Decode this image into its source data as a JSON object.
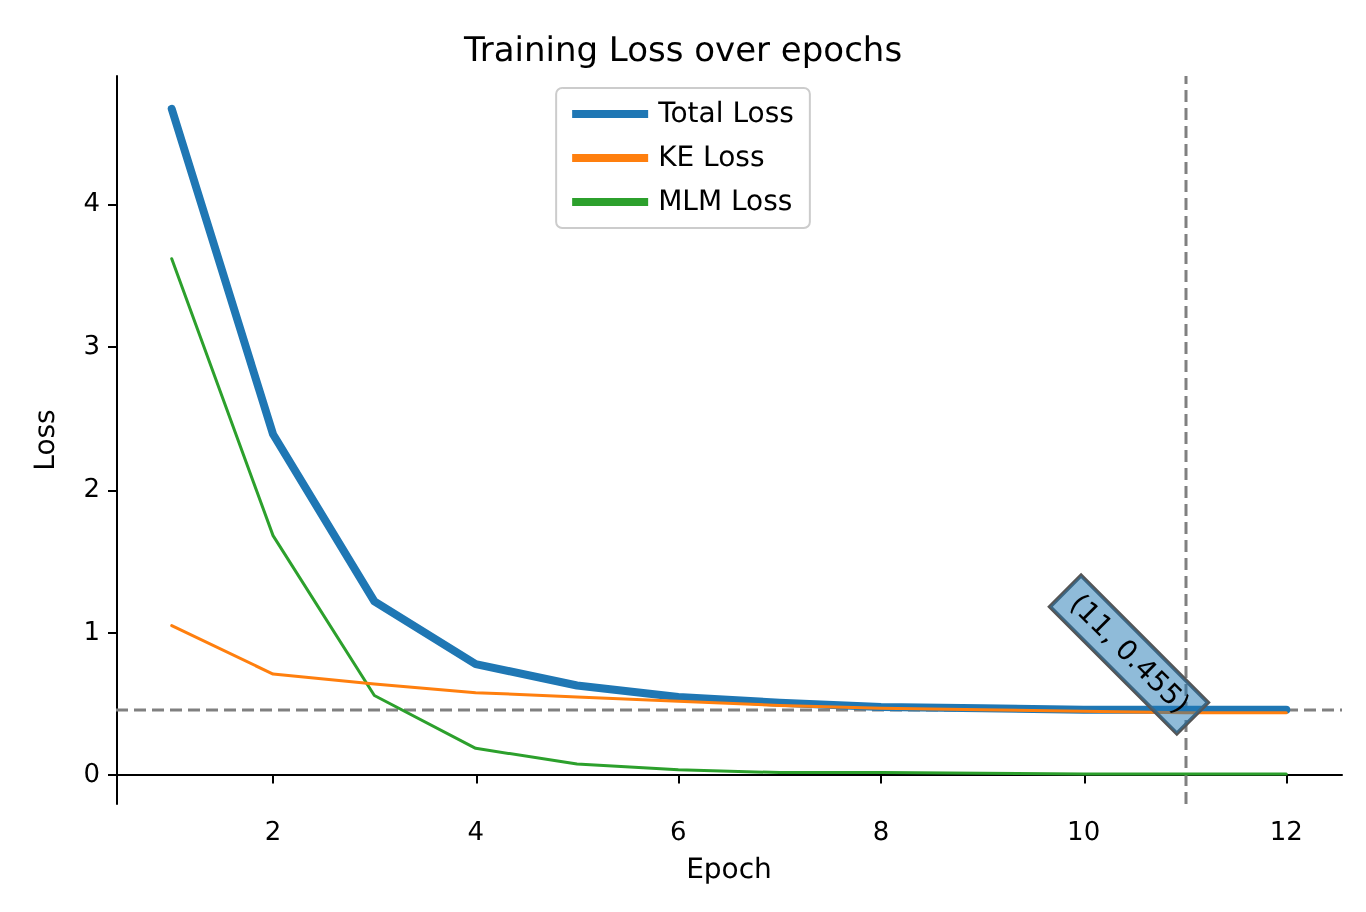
{
  "chart_data": {
    "type": "line",
    "title": "Training Loss over epochs",
    "xlabel": "Epoch",
    "ylabel": "Loss",
    "x": [
      1,
      2,
      3,
      4,
      5,
      6,
      7,
      8,
      9,
      10,
      11,
      12
    ],
    "series": [
      {
        "name": "Total Loss",
        "color": "#1f77b4",
        "values": [
          4.67,
          2.39,
          1.22,
          0.78,
          0.63,
          0.55,
          0.51,
          0.48,
          0.47,
          0.46,
          0.46,
          0.46
        ]
      },
      {
        "name": "KE Loss",
        "color": "#ff7f0e",
        "values": [
          1.05,
          0.71,
          0.64,
          0.58,
          0.55,
          0.52,
          0.49,
          0.47,
          0.46,
          0.45,
          0.44,
          0.44
        ]
      },
      {
        "name": "MLM Loss",
        "color": "#2ca02c",
        "values": [
          3.62,
          1.68,
          0.56,
          0.19,
          0.08,
          0.04,
          0.02,
          0.02,
          0.015,
          0.01,
          0.01,
          0.01
        ]
      }
    ],
    "xlim": [
      0.45,
      12.55
    ],
    "xticks": [
      2,
      4,
      6,
      8,
      10,
      12
    ],
    "ylim": [
      -0.2,
      4.9
    ],
    "yticks": [
      0,
      1,
      2,
      3,
      4
    ],
    "ref_lines": [
      {
        "axis": "y",
        "value": 0.455,
        "color": "#808080",
        "line_style": "dashed"
      },
      {
        "axis": "x",
        "value": 11,
        "color": "#808080",
        "line_style": "dashed"
      }
    ],
    "annotations": [
      {
        "text": "(11, 0.455)",
        "x": 11,
        "y": 0.455
      }
    ],
    "grid": false,
    "legend": "top",
    "marker": "none",
    "line_style": "solid"
  }
}
